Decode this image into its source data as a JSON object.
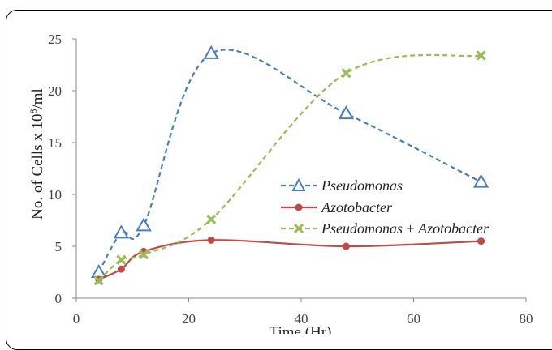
{
  "chart_data": {
    "type": "line",
    "xlabel": "Time (Hr)",
    "ylabel": "No. of Cells x 10",
    "ylabel_exp": "8",
    "ylabel_suffix": "/ml",
    "xlim": [
      0,
      80
    ],
    "ylim": [
      0,
      25
    ],
    "xticks": [
      0,
      20,
      40,
      60,
      80
    ],
    "yticks": [
      0,
      5,
      10,
      15,
      20,
      25
    ],
    "grid": false,
    "legend_position": "center-right",
    "series": [
      {
        "name": "Pseudomonas",
        "color": "#4a7ebb",
        "marker": "triangle-open",
        "line": "dashed",
        "x": [
          4,
          8,
          12,
          24,
          48,
          72
        ],
        "y": [
          2.5,
          6.3,
          7.0,
          23.6,
          17.8,
          11.2
        ]
      },
      {
        "name": "Azotobacter",
        "color": "#be4b48",
        "marker": "circle",
        "line": "solid",
        "x": [
          4,
          8,
          12,
          24,
          48,
          72
        ],
        "y": [
          1.8,
          2.8,
          4.5,
          5.6,
          5.0,
          5.5
        ]
      },
      {
        "name": "Pseudomonas + Azotobacter",
        "name_a": "Pseudomonas",
        "name_plus": " + ",
        "name_b": "Azotobacter",
        "color": "#9bbb59",
        "marker": "x",
        "line": "dashed",
        "x": [
          4,
          8,
          12,
          24,
          48,
          72
        ],
        "y": [
          1.7,
          3.7,
          4.2,
          7.6,
          21.7,
          23.4
        ]
      }
    ]
  }
}
